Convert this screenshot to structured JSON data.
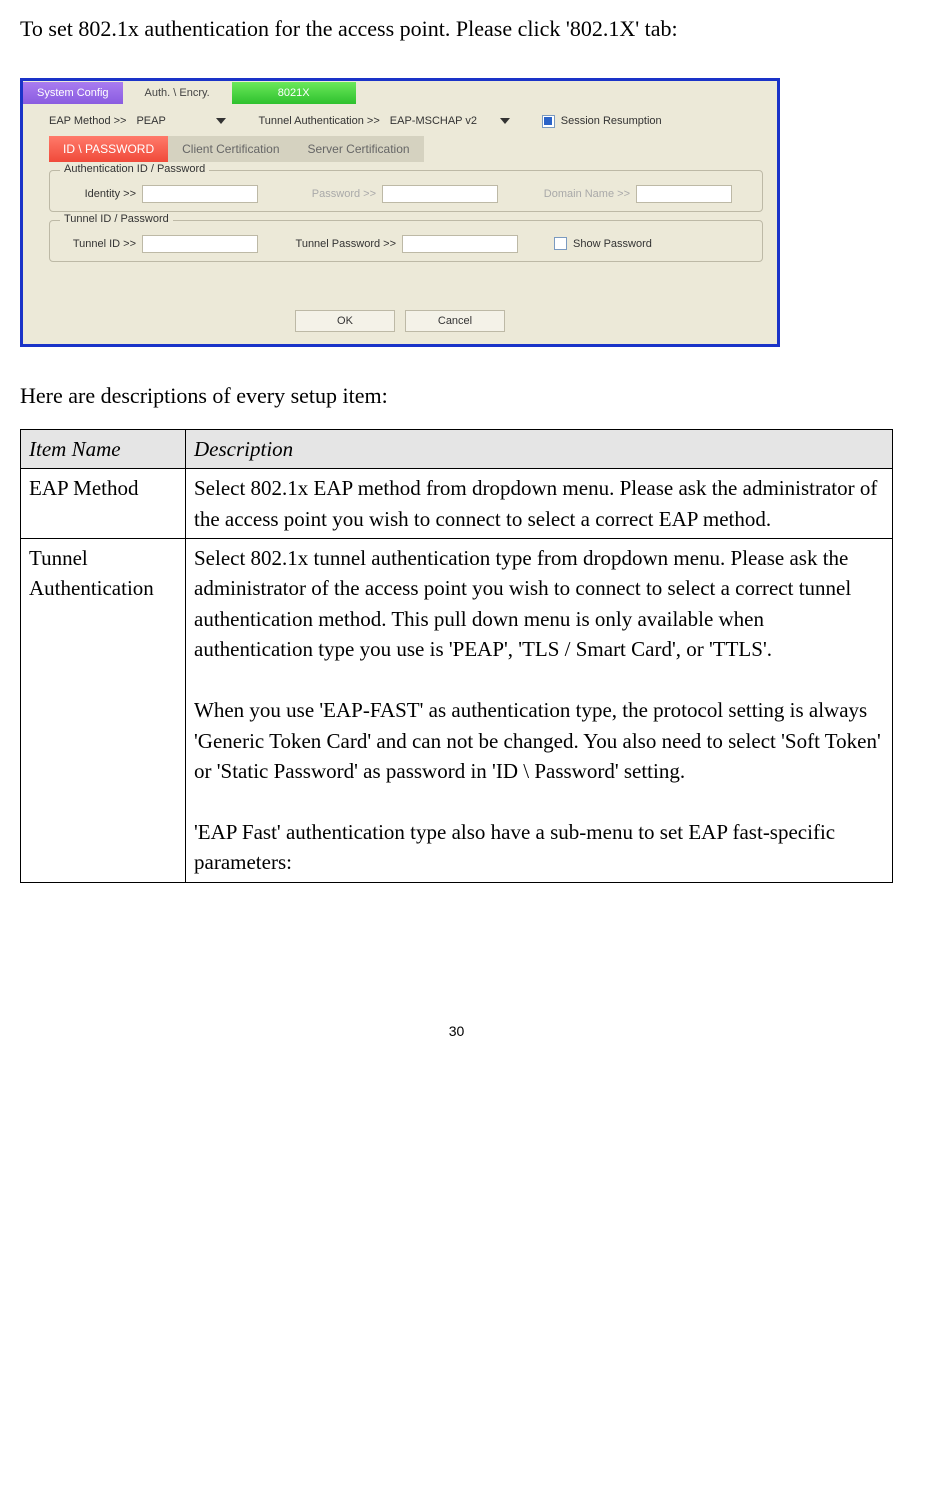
{
  "intro": "To set 802.1x authentication for the access point. Please click '802.1X' tab:",
  "screenshot": {
    "frame_border_color": "#1a33c8",
    "panel_bg": "#ece9d8",
    "top_tabs": [
      {
        "label": "System Config",
        "style": "purple",
        "bg": "#8a5ce0"
      },
      {
        "label": "Auth. \\ Encry.",
        "style": "gray",
        "bg": "#ece9d8"
      },
      {
        "label": "8021X",
        "style": "green",
        "bg": "#2ec12e"
      }
    ],
    "eap": {
      "label": "EAP Method >>",
      "value": "PEAP"
    },
    "tunnel_auth": {
      "label": "Tunnel Authentication >>",
      "value": "EAP-MSCHAP v2"
    },
    "session_resumption": {
      "label": "Session Resumption",
      "checked": true
    },
    "sub_tabs": [
      {
        "label": "ID \\ PASSWORD",
        "style": "red",
        "bg": "#f04a3a"
      },
      {
        "label": "Client Certification",
        "style": "gray",
        "bg": "#d5d2c0"
      },
      {
        "label": "Server Certification",
        "style": "gray",
        "bg": "#d5d2c0"
      }
    ],
    "auth_group": {
      "legend": "Authentication ID / Password",
      "identity_label": "Identity >>",
      "password_label": "Password >>",
      "domain_label": "Domain Name >>"
    },
    "tunnel_group": {
      "legend": "Tunnel ID / Password",
      "id_label": "Tunnel ID >>",
      "password_label": "Tunnel Password >>",
      "show_password_label": "Show Password",
      "show_password_checked": false
    },
    "buttons": {
      "ok": "OK",
      "cancel": "Cancel"
    }
  },
  "table_intro": "Here are descriptions of every setup item:",
  "table": {
    "header_bg": "#e5e5e5",
    "columns": [
      "Item Name",
      "Description"
    ],
    "rows": [
      {
        "name": "EAP Method",
        "desc": "Select 802.1x EAP method from dropdown menu. Please ask the administrator of the access point you wish to connect to select a correct EAP method."
      },
      {
        "name": "Tunnel Authentication",
        "desc": "Select 802.1x tunnel authentication type from dropdown menu. Please ask the administrator of the access point you wish to connect to select a correct tunnel authentication method. This pull down menu is only available when authentication type you use is 'PEAP', 'TLS / Smart Card', or 'TTLS'.\n\nWhen you use 'EAP-FAST' as authentication type, the protocol setting is always 'Generic Token Card' and can not be changed. You also need to select 'Soft Token' or 'Static Password' as password in 'ID \\ Password' setting.\n\n'EAP Fast' authentication type also have a sub-menu to set EAP fast-specific parameters:\n"
      }
    ]
  },
  "page_number": "30"
}
